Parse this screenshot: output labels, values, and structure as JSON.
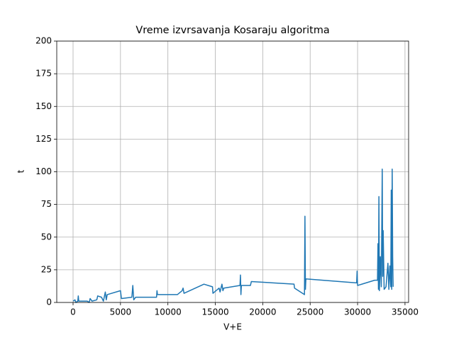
{
  "chart_data": {
    "type": "line",
    "title": "Vreme izvrsavanja Kosaraju algoritma",
    "x_label": "V+E",
    "y_label": "t",
    "x": [
      0,
      200,
      300,
      500,
      550,
      600,
      1500,
      1700,
      1800,
      2000,
      2500,
      2600,
      3000,
      3200,
      3400,
      3500,
      3600,
      5000,
      5100,
      6200,
      6300,
      6400,
      6600,
      8800,
      8850,
      8900,
      11000,
      11500,
      11600,
      11700,
      13800,
      14700,
      14750,
      15400,
      15500,
      15700,
      15800,
      15900,
      17600,
      17650,
      17700,
      17750,
      18700,
      18800,
      23300,
      23350,
      24400,
      24450,
      24500,
      24550,
      29900,
      29950,
      30000,
      31800,
      32100,
      32150,
      32200,
      32250,
      32300,
      32400,
      32500,
      32600,
      32650,
      32700,
      32800,
      33000,
      33200,
      33300,
      33400,
      33500,
      33550,
      33600,
      33650,
      33700,
      33750
    ],
    "series": [
      {
        "name": "t",
        "color": "#1f77b4",
        "values": [
          1,
          2,
          0,
          1,
          5,
          1,
          1,
          0,
          3,
          1,
          2,
          5,
          4,
          1,
          8,
          2,
          6,
          9,
          3,
          4,
          13,
          2,
          4,
          4,
          9,
          6,
          6,
          9,
          11,
          7,
          14,
          12,
          7,
          11,
          8,
          14,
          9,
          11,
          13,
          21,
          6,
          13,
          13,
          16,
          14,
          11,
          6,
          66,
          10,
          18,
          15,
          24,
          13,
          17,
          17,
          45,
          10,
          81,
          9,
          35,
          12,
          102,
          20,
          55,
          10,
          12,
          30,
          10,
          28,
          12,
          86,
          10,
          102,
          35,
          12
        ]
      }
    ],
    "xlim": [
      -1720,
      35380
    ],
    "ylim": [
      0,
      200
    ],
    "xticks": [
      0,
      5000,
      10000,
      15000,
      20000,
      25000,
      30000,
      35000
    ],
    "yticks": [
      0,
      25,
      50,
      75,
      100,
      125,
      150,
      175,
      200
    ],
    "grid": true
  }
}
